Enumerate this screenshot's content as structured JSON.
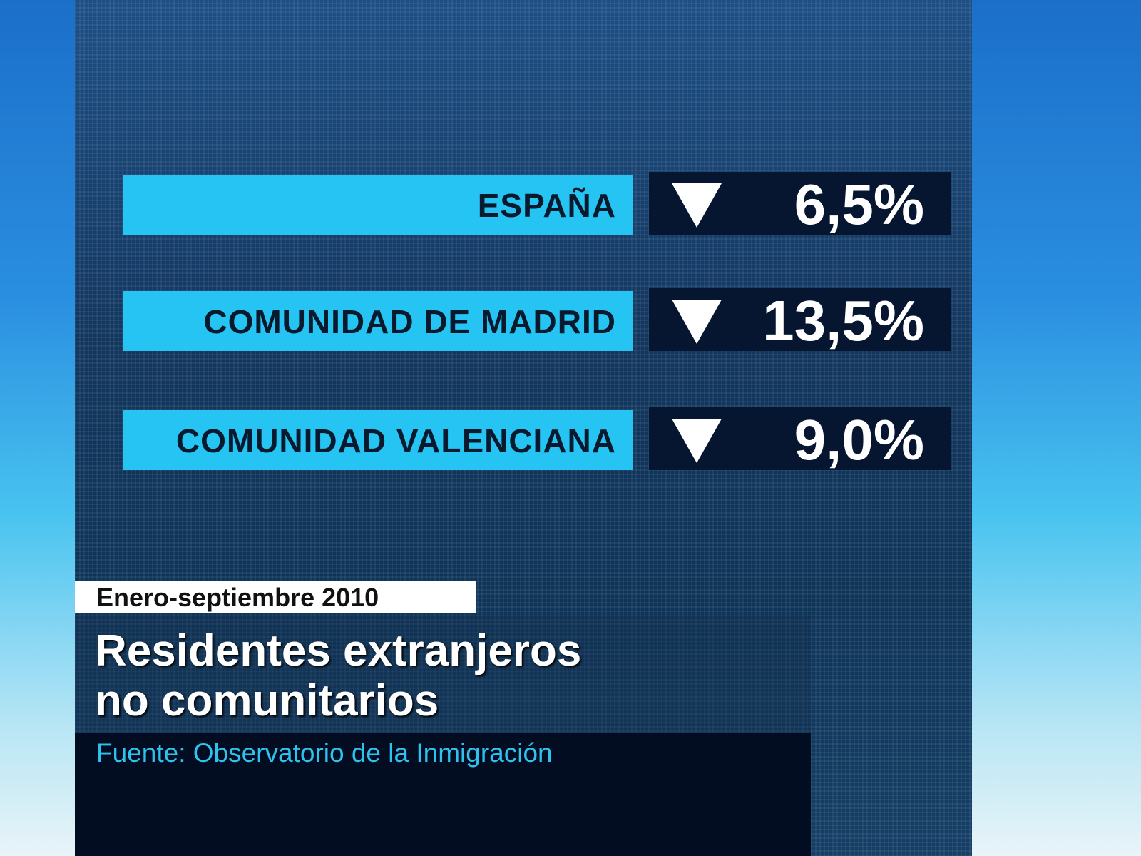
{
  "rows": [
    {
      "region": "ESPAÑA",
      "trend": "down",
      "value": "6,5%"
    },
    {
      "region": "COMUNIDAD DE MADRID",
      "trend": "down",
      "value": "13,5%"
    },
    {
      "region": "COMUNIDAD VALENCIANA",
      "trend": "down",
      "value": "9,0%"
    }
  ],
  "period": "Enero-septiembre 2010",
  "title_line1": "Residentes extranjeros",
  "title_line2": "no comunitarios",
  "source": "Fuente: Observatorio de la Inmigración",
  "colors": {
    "label_bar": "#25c4f2",
    "value_box": "#061530",
    "source_text": "#2ec3ef"
  }
}
